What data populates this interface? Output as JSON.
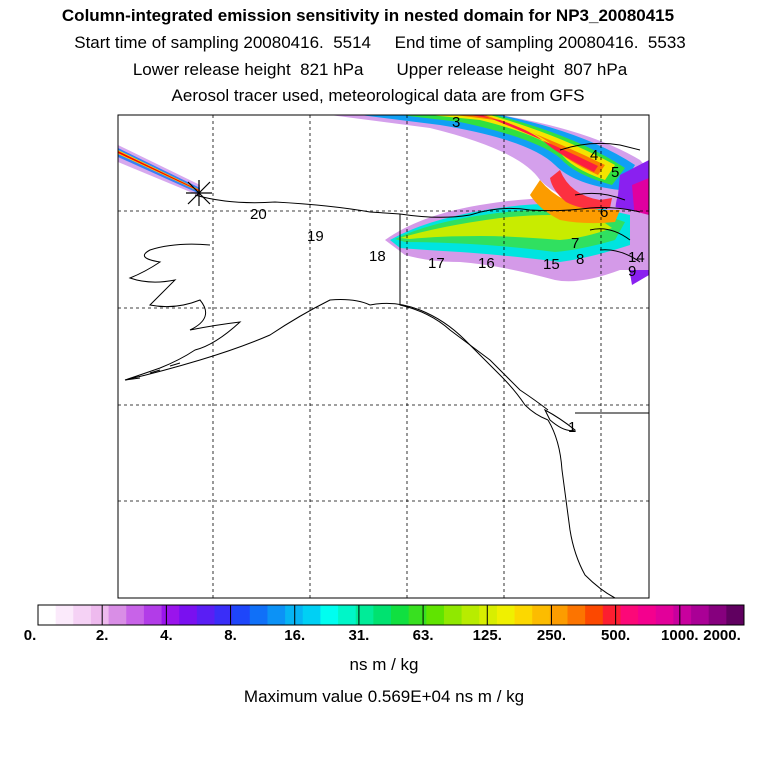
{
  "header": {
    "title": "Column-integrated emission sensitivity in nested domain for NP3_20080415",
    "start_label": "Start time of sampling",
    "start_value": "20080416.  5514",
    "end_label": "End time of sampling",
    "end_value": "20080416.  5533",
    "lower_label": "Lower release height",
    "lower_value": "821 hPa",
    "upper_label": "Upper release height",
    "upper_value": "807 hPa",
    "note": "Aerosol tracer used, meteorological data are from GFS"
  },
  "trajectory_hours": [
    "1",
    "3",
    "4",
    "5",
    "6",
    "7",
    "8",
    "9",
    "14",
    "15",
    "16",
    "17",
    "18",
    "19",
    "20"
  ],
  "legend": {
    "tick_labels": [
      "0.",
      "2.",
      "4.",
      "8.",
      "16.",
      "31.",
      "63.",
      "125.",
      "250.",
      "500.",
      "1000.",
      "2000."
    ],
    "colors": [
      "#ffffff",
      "#fbeafb",
      "#f5d2f5",
      "#eebaee",
      "#d98ee6",
      "#c863e8",
      "#b23ce8",
      "#9a14ec",
      "#7a10f0",
      "#5a1ef4",
      "#3a2ef8",
      "#1e46fa",
      "#1070f8",
      "#0c92f6",
      "#06b4f4",
      "#00d0f4",
      "#00fef0",
      "#00f6c8",
      "#00ec98",
      "#00e270",
      "#10e040",
      "#38e020",
      "#60e400",
      "#90e800",
      "#b8ec00",
      "#d8ee00",
      "#f0f000",
      "#fcd800",
      "#fcbc00",
      "#fc9c00",
      "#fc7400",
      "#fc4800",
      "#fc1e30",
      "#fc0878",
      "#f4008e",
      "#e2009a",
      "#c8009e",
      "#aa0096",
      "#86007e",
      "#600060"
    ],
    "units": "ns m / kg",
    "max_label": "Maximum value",
    "max_value": "0.569E+04 ns m / kg"
  },
  "colors": {
    "frame": "#000000",
    "grid": "#000000",
    "coast": "#000000"
  }
}
